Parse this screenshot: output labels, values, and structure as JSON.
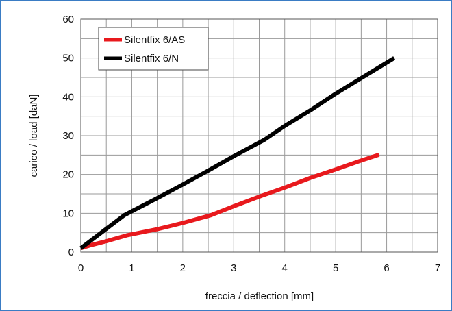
{
  "chart_data": {
    "type": "line",
    "xlabel": "freccia / deflection [mm]",
    "ylabel": "carico / load [daN]",
    "xlim": [
      0,
      7
    ],
    "ylim": [
      0,
      60
    ],
    "xticks": [
      0,
      1,
      2,
      3,
      4,
      5,
      6,
      7
    ],
    "yticks": [
      0,
      10,
      20,
      30,
      40,
      50,
      60
    ],
    "x_minor_step": 0.5,
    "y_minor_step": 5,
    "grid": true,
    "legend_position": "top-left",
    "series": [
      {
        "name": "Silentfix 6/AS",
        "color": "#e8191d",
        "points": [
          [
            0,
            1
          ],
          [
            0.2,
            1.8
          ],
          [
            0.5,
            2.8
          ],
          [
            0.9,
            4.3
          ],
          [
            1.5,
            5.9
          ],
          [
            2.0,
            7.5
          ],
          [
            2.55,
            9.5
          ],
          [
            3.0,
            11.8
          ],
          [
            3.5,
            14.3
          ],
          [
            4.0,
            16.6
          ],
          [
            4.5,
            19.1
          ],
          [
            5.0,
            21.3
          ],
          [
            5.5,
            23.6
          ],
          [
            5.85,
            25.1
          ]
        ]
      },
      {
        "name": "Silentfix 6/N",
        "color": "#000000",
        "points": [
          [
            0,
            1
          ],
          [
            0.4,
            5.0
          ],
          [
            0.85,
            9.5
          ],
          [
            1.5,
            13.9
          ],
          [
            2.0,
            17.4
          ],
          [
            2.5,
            21.0
          ],
          [
            3.0,
            24.7
          ],
          [
            3.6,
            28.9
          ],
          [
            4.0,
            32.5
          ],
          [
            4.5,
            36.5
          ],
          [
            5.0,
            40.8
          ],
          [
            5.5,
            44.8
          ],
          [
            6.15,
            50.0
          ]
        ]
      }
    ]
  }
}
